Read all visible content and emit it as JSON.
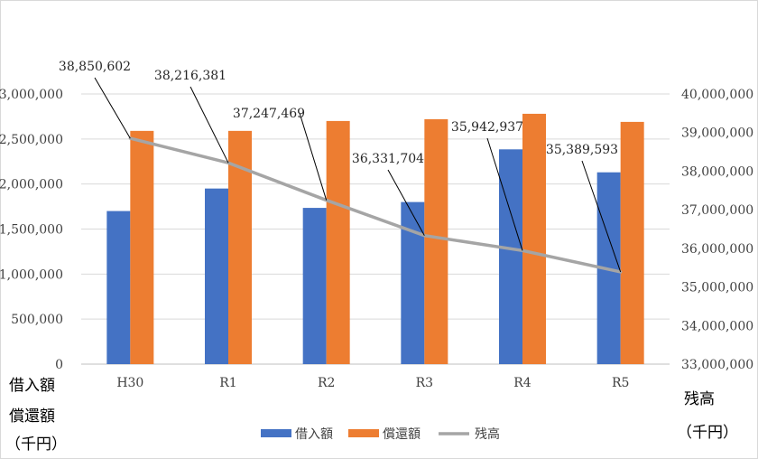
{
  "chart_data": {
    "type": "bar",
    "categories": [
      "H30",
      "R1",
      "R2",
      "R3",
      "R4",
      "R5"
    ],
    "series": [
      {
        "name": "借入額",
        "kind": "bar",
        "axis": "left",
        "color": "#4472c4",
        "values": [
          1700000,
          1950000,
          1735000,
          1800000,
          2385000,
          2130000
        ]
      },
      {
        "name": "償還額",
        "kind": "bar",
        "axis": "left",
        "color": "#ed7d31",
        "values": [
          2590000,
          2590000,
          2700000,
          2720000,
          2780000,
          2690000
        ]
      },
      {
        "name": "残高",
        "kind": "line",
        "axis": "right",
        "color": "#a5a5a5",
        "values": [
          38850602,
          38216381,
          37247469,
          36331704,
          35942937,
          35389593
        ],
        "data_labels": [
          "38,850,602",
          "38,216,381",
          "37,247,469",
          "36,331,704",
          "35,942,937",
          "35,389,593"
        ]
      }
    ],
    "y_left": {
      "min": 0,
      "max": 3000000,
      "step": 500000,
      "tick_labels": [
        "0",
        "500,000",
        "1,000,000",
        "1,500,000",
        "2,000,000",
        "2,500,000",
        "3,000,000"
      ]
    },
    "y_right": {
      "min": 33000000,
      "max": 40000000,
      "step": 1000000,
      "tick_labels": [
        "33,000,000",
        "34,000,000",
        "35,000,000",
        "36,000,000",
        "37,000,000",
        "38,000,000",
        "39,000,000",
        "40,000,000"
      ]
    },
    "ylabel_left": [
      "借入額",
      "償還額",
      "（千円）"
    ],
    "ylabel_right": [
      "残高",
      "（千円）"
    ],
    "grid": true,
    "legend": "bottom"
  }
}
